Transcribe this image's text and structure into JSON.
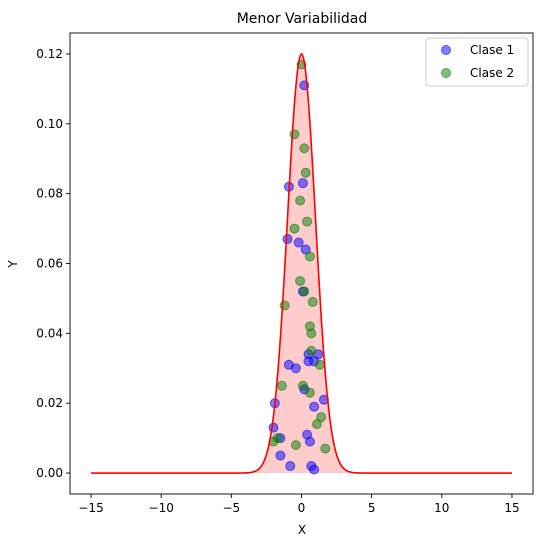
{
  "chart_data": {
    "type": "scatter",
    "title": "Menor Variabilidad",
    "xlabel": "X",
    "ylabel": "Y",
    "xlim": [
      -16.5,
      16.5
    ],
    "ylim": [
      -0.006,
      0.126
    ],
    "xticks": [
      -15,
      -10,
      -5,
      0,
      5,
      10,
      15
    ],
    "yticks": [
      0.0,
      0.02,
      0.04,
      0.06,
      0.08,
      0.1,
      0.12
    ],
    "ytick_labels": [
      "0.00",
      "0.02",
      "0.04",
      "0.06",
      "0.08",
      "0.10",
      "0.12"
    ],
    "grid": false,
    "legend_position": "top-right",
    "curve": {
      "color": "#ff0000",
      "fill_color": "#ff9999",
      "peak": 0.12,
      "sigma": 1.0,
      "x_range": [
        -15,
        15
      ]
    },
    "series": [
      {
        "name": "Clase 1",
        "color": "#0000ff",
        "points": [
          [
            0.2,
            0.111
          ],
          [
            0.1,
            0.083
          ],
          [
            -0.9,
            0.082
          ],
          [
            -1.0,
            0.067
          ],
          [
            -0.2,
            0.066
          ],
          [
            0.3,
            0.064
          ],
          [
            0.1,
            0.052
          ],
          [
            0.5,
            0.034
          ],
          [
            1.2,
            0.034
          ],
          [
            0.5,
            0.032
          ],
          [
            0.9,
            0.032
          ],
          [
            -0.9,
            0.031
          ],
          [
            -0.4,
            0.03
          ],
          [
            0.2,
            0.024
          ],
          [
            1.6,
            0.021
          ],
          [
            -1.9,
            0.02
          ],
          [
            0.9,
            0.019
          ],
          [
            -2.0,
            0.013
          ],
          [
            0.4,
            0.011
          ],
          [
            -1.5,
            0.01
          ],
          [
            0.6,
            0.009
          ],
          [
            -1.5,
            0.005
          ],
          [
            -0.8,
            0.002
          ],
          [
            0.7,
            0.002
          ],
          [
            0.9,
            0.001
          ]
        ]
      },
      {
        "name": "Clase 2",
        "color": "#008000",
        "points": [
          [
            0.0,
            0.117
          ],
          [
            -0.5,
            0.097
          ],
          [
            0.2,
            0.093
          ],
          [
            0.3,
            0.086
          ],
          [
            -0.1,
            0.078
          ],
          [
            0.4,
            0.072
          ],
          [
            -0.5,
            0.07
          ],
          [
            0.6,
            0.062
          ],
          [
            -0.1,
            0.055
          ],
          [
            0.2,
            0.052
          ],
          [
            0.8,
            0.049
          ],
          [
            -1.2,
            0.048
          ],
          [
            0.6,
            0.042
          ],
          [
            0.7,
            0.04
          ],
          [
            0.7,
            0.035
          ],
          [
            1.3,
            0.031
          ],
          [
            0.1,
            0.025
          ],
          [
            0.6,
            0.023
          ],
          [
            -1.4,
            0.025
          ],
          [
            1.4,
            0.016
          ],
          [
            1.1,
            0.014
          ],
          [
            -1.7,
            0.01
          ],
          [
            -2.0,
            0.009
          ],
          [
            -0.4,
            0.008
          ],
          [
            1.7,
            0.007
          ]
        ]
      }
    ]
  }
}
